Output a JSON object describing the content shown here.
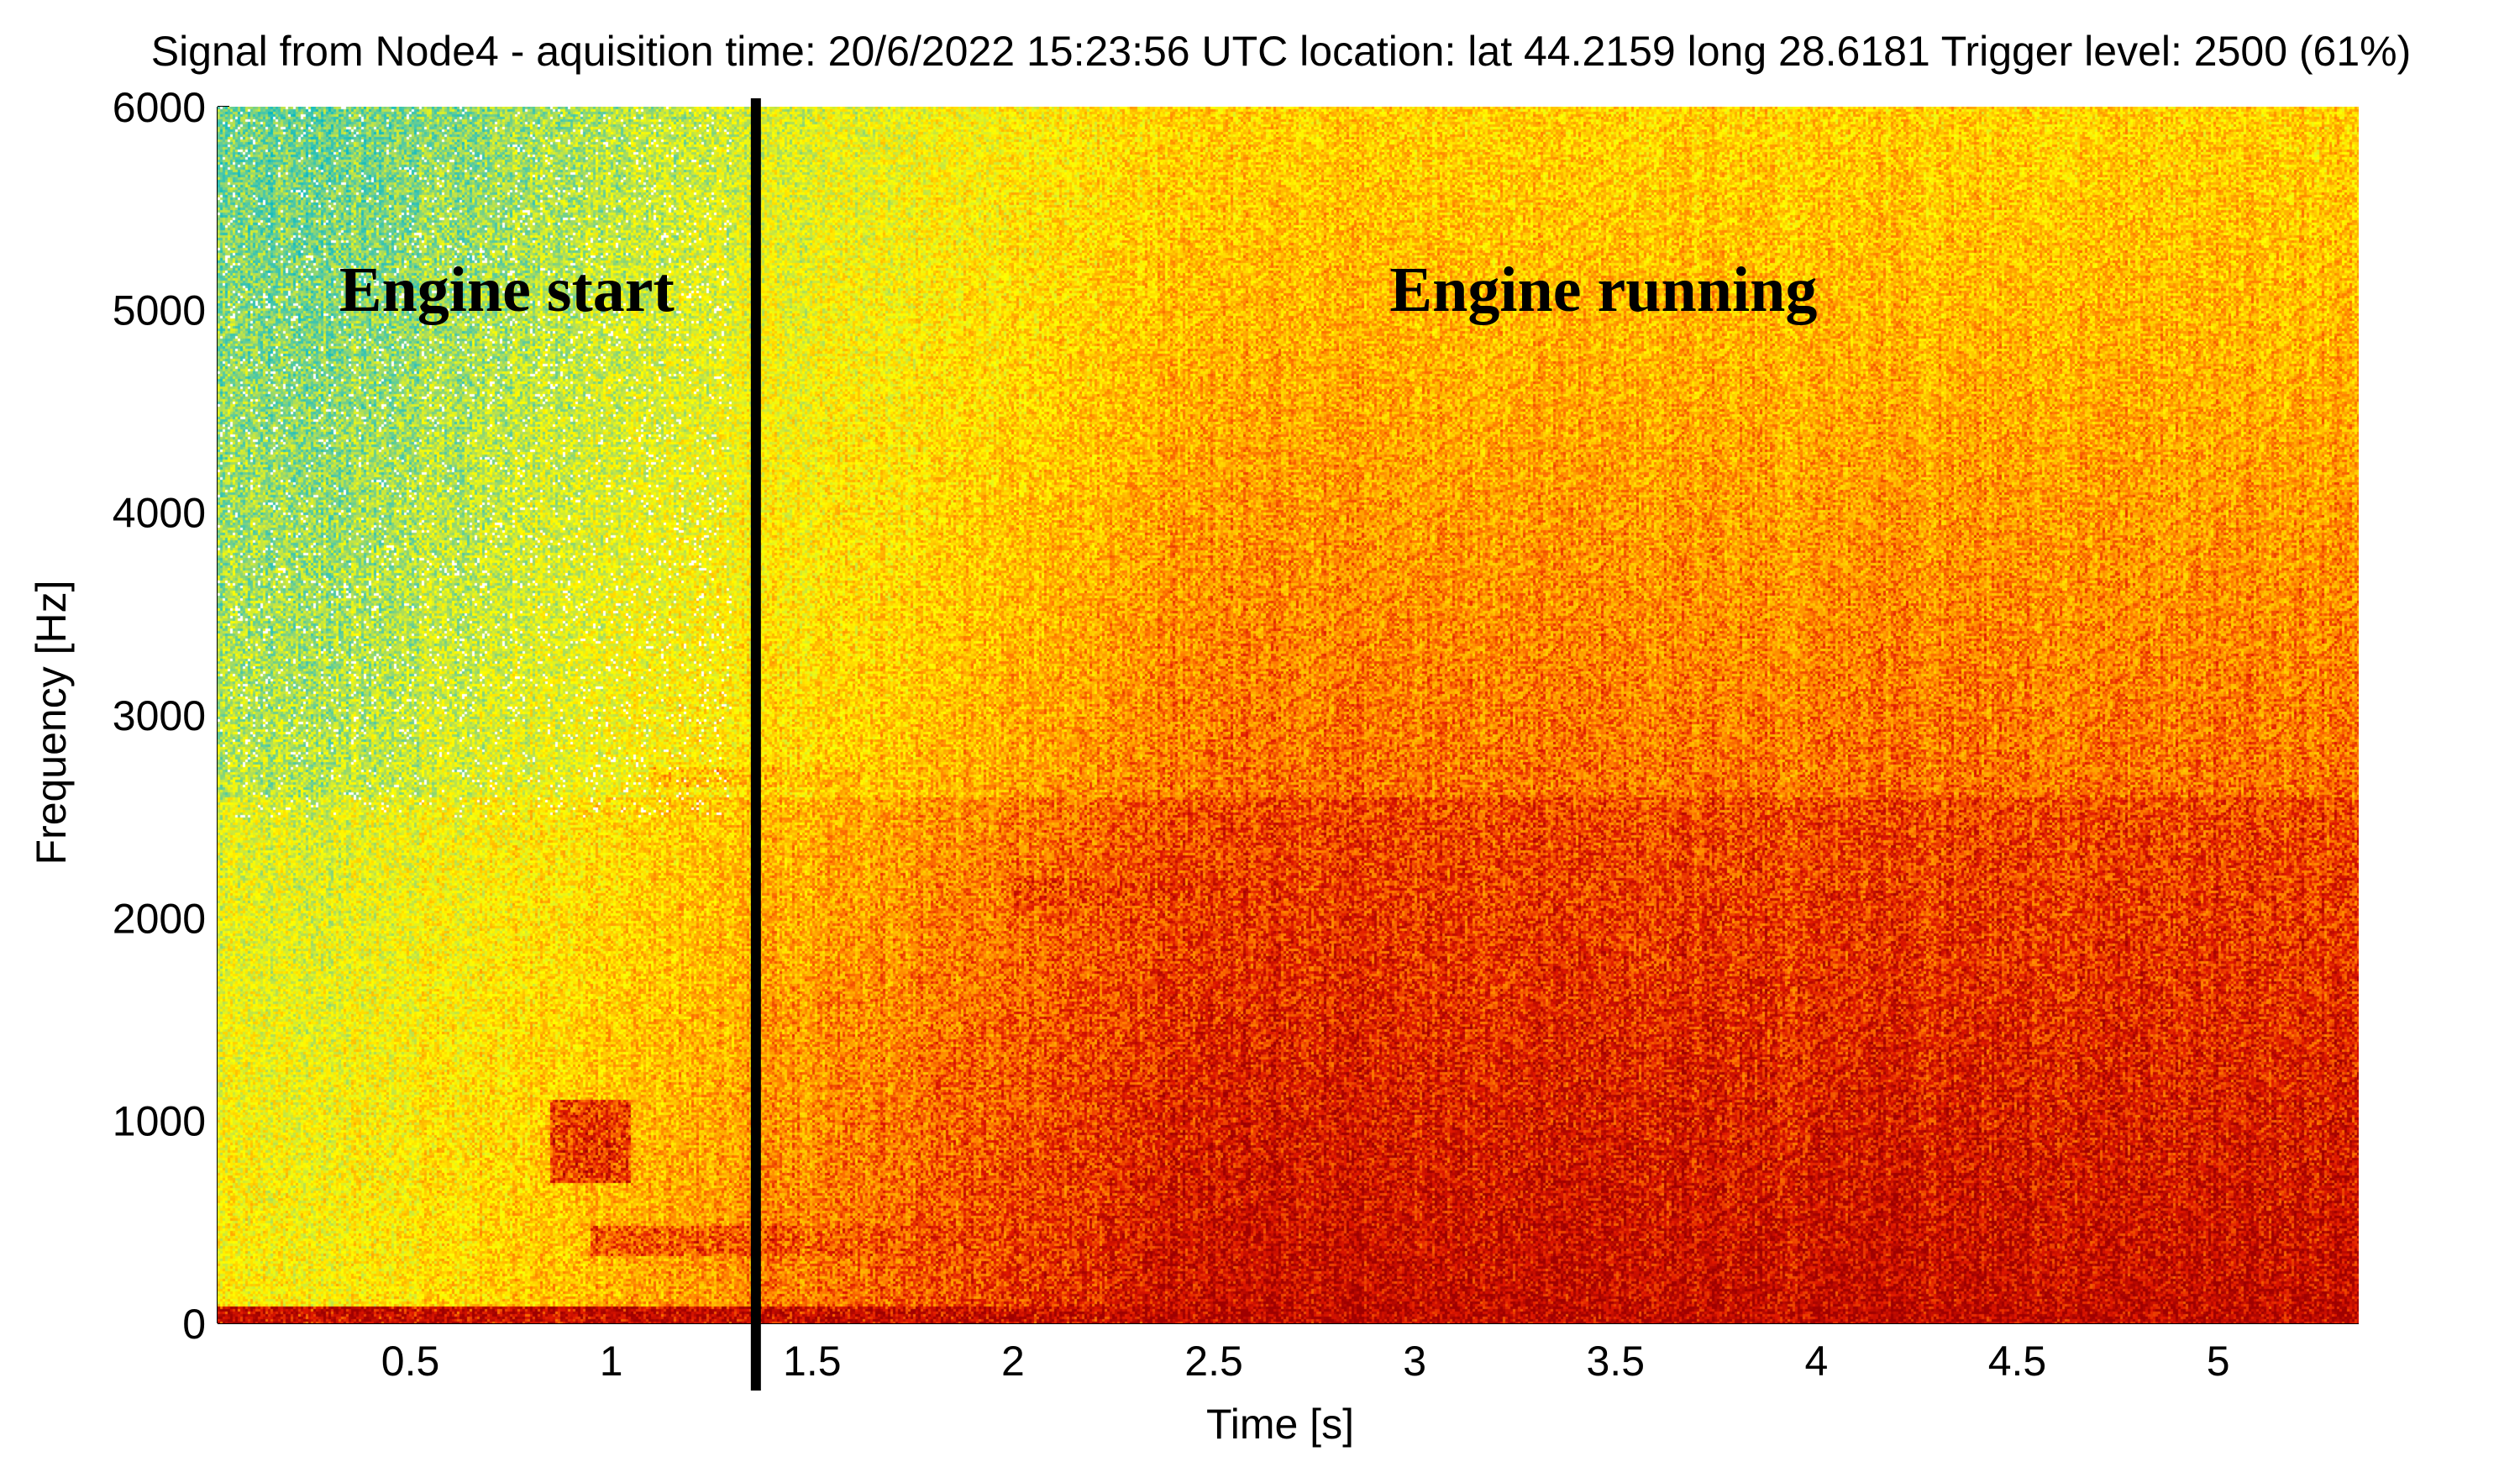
{
  "chart_data": {
    "type": "heatmap",
    "title": "Signal from Node4 - aquisition time: 20/6/2022 15:23:56 UTC location: lat 44.2159 long 28.6181 Trigger level: 2500 (61%)",
    "xlabel": "Time [s]",
    "ylabel": "Frequency [Hz]",
    "xlim": [
      0.02,
      5.35
    ],
    "ylim": [
      0,
      6000
    ],
    "x_ticks": [
      0.5,
      1,
      1.5,
      2,
      2.5,
      3,
      3.5,
      4,
      4.5,
      5
    ],
    "x_tick_labels": [
      "0.5",
      "1",
      "1.5",
      "2",
      "2.5",
      "3",
      "3.5",
      "4",
      "4.5",
      "5"
    ],
    "y_ticks": [
      0,
      1000,
      2000,
      3000,
      4000,
      5000,
      6000
    ],
    "y_tick_labels": [
      "0",
      "1000",
      "2000",
      "3000",
      "4000",
      "5000",
      "6000"
    ],
    "colormap": [
      "#00b8c8",
      "#4cc8a8",
      "#b8e050",
      "#ffff00",
      "#ffc000",
      "#ff7800",
      "#e01800",
      "#a00000"
    ],
    "marker_line": {
      "x": 1.36,
      "color": "#000000"
    },
    "annotations": [
      {
        "text": "Engine start",
        "x": 0.74,
        "y": 5100
      },
      {
        "text": "Engine running",
        "x": 3.47,
        "y": 5100
      }
    ],
    "bands": [
      {
        "f_low": 0,
        "f_high": 80,
        "t_start": 0.02,
        "t_end": 5.35,
        "intensity": 0.97
      },
      {
        "f_low": 330,
        "f_high": 480,
        "t_start": 0.95,
        "t_end": 5.35,
        "intensity": 0.8
      },
      {
        "f_low": 1650,
        "f_high": 2350,
        "t_start": 2.5,
        "t_end": 5.35,
        "intensity": 0.72
      },
      {
        "f_low": 2050,
        "f_high": 2200,
        "t_start": 2.0,
        "t_end": 2.6,
        "intensity": 0.82
      },
      {
        "f_low": 1200,
        "f_high": 1700,
        "t_start": 1.4,
        "t_end": 2.1,
        "intensity": 0.66
      },
      {
        "f_low": 2650,
        "f_high": 2750,
        "t_start": 1.1,
        "t_end": 5.35,
        "intensity": 0.6
      },
      {
        "f_low": 700,
        "f_high": 1100,
        "t_start": 0.85,
        "t_end": 1.05,
        "intensity": 0.86
      }
    ]
  }
}
